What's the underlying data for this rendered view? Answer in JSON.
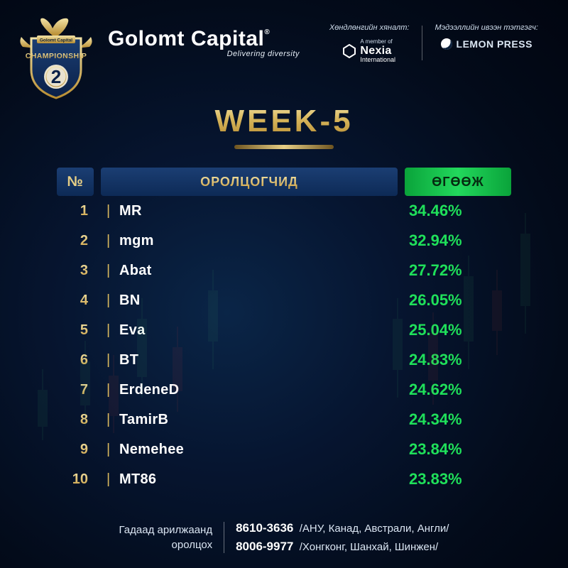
{
  "colors": {
    "bg_inner": "#0a2547",
    "bg_outer": "#010510",
    "gold_light": "#f3e3a6",
    "gold_mid": "#d9b85e",
    "gold_dark": "#b88d32",
    "panel_top": "#1b3e73",
    "panel_bot": "#0d2a56",
    "green_head1": "#0aa33a",
    "green_head2": "#22d85c",
    "green_text": "#1fe05a",
    "white": "#ffffff",
    "muted": "#dbe6f3"
  },
  "shield": {
    "top_text": "Golomt Capital",
    "main_text": "CHAMPIONSHIP",
    "edition": "2"
  },
  "brand": {
    "name": "Golomt Capital",
    "tagline": "Delivering diversity",
    "registered": "®"
  },
  "partners": [
    {
      "caption": "Хөндлөнгийн хяналт:",
      "logo_primary": "Nexia",
      "logo_secondary": "International",
      "logo_pre": "A member of",
      "type": "nexia"
    },
    {
      "caption": "Мэдээллийн ивээн тэтгэгч:",
      "logo_primary": "LEMON PRESS",
      "type": "lemon"
    }
  ],
  "week": {
    "label": "WEEK-5"
  },
  "table": {
    "headers": {
      "rank": "№",
      "name": "ОРОЛЦОГЧИД",
      "yield": "ӨГӨӨЖ"
    },
    "rows": [
      {
        "rank": "1",
        "name": "MR",
        "yield": "34.46%"
      },
      {
        "rank": "2",
        "name": "mgm",
        "yield": "32.94%"
      },
      {
        "rank": "3",
        "name": "Abat",
        "yield": "27.72%"
      },
      {
        "rank": "4",
        "name": "BN",
        "yield": "26.05%"
      },
      {
        "rank": "5",
        "name": "Eva",
        "yield": "25.04%"
      },
      {
        "rank": "6",
        "name": "BT",
        "yield": "24.83%"
      },
      {
        "rank": "7",
        "name": "ErdeneD",
        "yield": "24.62%"
      },
      {
        "rank": "8",
        "name": "TamirB",
        "yield": "24.34%"
      },
      {
        "rank": "9",
        "name": "Nemehee",
        "yield": "23.84%"
      },
      {
        "rank": "10",
        "name": "MT86",
        "yield": "23.83%"
      }
    ]
  },
  "footer": {
    "left_line1": "Гадаад арилжаанд",
    "left_line2": "оролцох",
    "lines": [
      {
        "phone": "8610-3636",
        "regions": "/АНУ, Канад, Австрали, Англи/"
      },
      {
        "phone": "8006-9977",
        "regions": "/Хонгконг, Шанхай, Шинжен/"
      }
    ]
  }
}
